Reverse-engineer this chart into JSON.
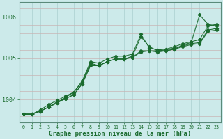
{
  "xlabel": "Graphe pression niveau de la mer (hPa)",
  "bg_color": "#cceaea",
  "line_color": "#1a6b2e",
  "grid_v_color": "#b0d4d4",
  "grid_h_color": "#c8b4b4",
  "ylim": [
    1003.45,
    1006.35
  ],
  "xlim": [
    -0.5,
    23.5
  ],
  "yticks": [
    1004,
    1005,
    1006
  ],
  "xticks": [
    0,
    1,
    2,
    3,
    4,
    5,
    6,
    7,
    8,
    9,
    10,
    11,
    12,
    13,
    14,
    15,
    16,
    17,
    18,
    19,
    20,
    21,
    22,
    23
  ],
  "series": [
    [
      1003.65,
      1003.65,
      1003.72,
      1003.82,
      1003.92,
      1004.05,
      1004.18,
      1004.42,
      1004.88,
      1004.82,
      1004.92,
      1004.98,
      1004.98,
      1005.05,
      1005.52,
      1005.28,
      1005.18,
      1005.18,
      1005.22,
      1005.32,
      1005.38,
      1006.05,
      1005.82,
      1005.78
    ],
    [
      1003.65,
      1003.65,
      1003.72,
      1003.82,
      1003.92,
      1004.02,
      1004.12,
      1004.38,
      1004.82,
      1004.82,
      1004.92,
      1004.98,
      1004.98,
      1005.02,
      1005.18,
      1005.18,
      1005.18,
      1005.2,
      1005.25,
      1005.3,
      1005.35,
      1005.38,
      1005.68,
      1005.72
    ],
    [
      1003.65,
      1003.65,
      1003.72,
      1003.82,
      1003.95,
      1004.02,
      1004.12,
      1004.38,
      1004.85,
      1004.82,
      1004.92,
      1004.98,
      1004.98,
      1005.02,
      1005.15,
      1005.18,
      1005.15,
      1005.18,
      1005.22,
      1005.28,
      1005.33,
      1005.35,
      1005.65,
      1005.68
    ],
    [
      1003.65,
      1003.65,
      1003.75,
      1003.88,
      1003.98,
      1004.08,
      1004.18,
      1004.45,
      1004.92,
      1004.88,
      1004.98,
      1005.05,
      1005.05,
      1005.1,
      1005.58,
      1005.25,
      1005.2,
      1005.22,
      1005.28,
      1005.35,
      1005.4,
      1005.45,
      1005.78,
      1005.82
    ]
  ]
}
